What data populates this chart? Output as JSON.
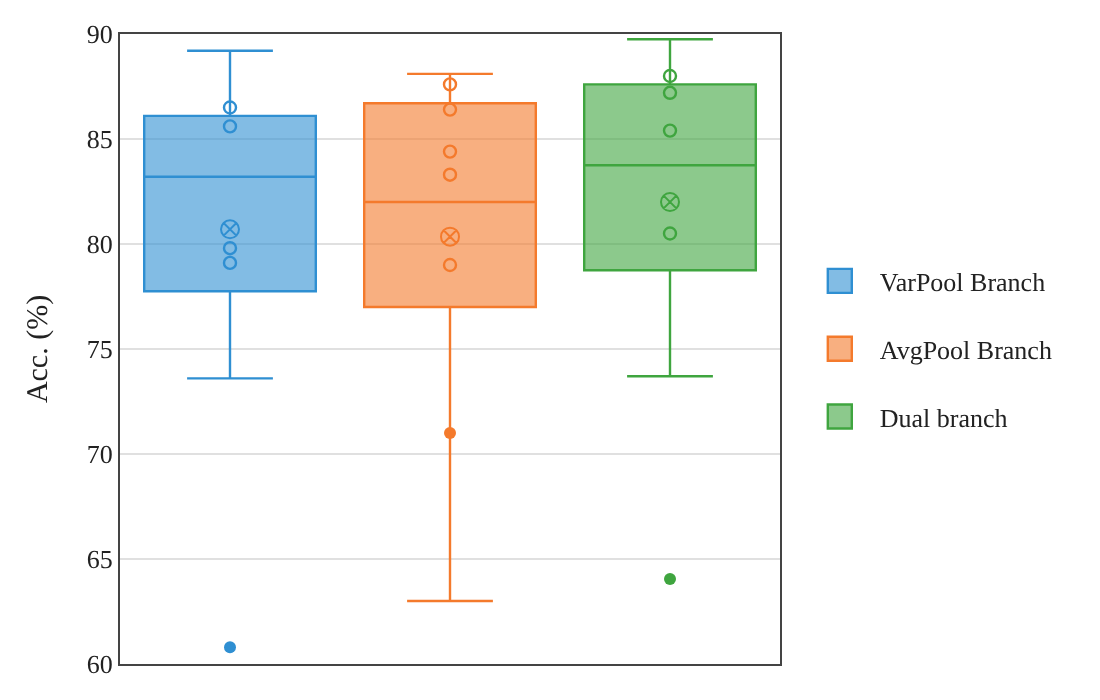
{
  "chart_data": {
    "type": "box",
    "ylabel": "Acc. (%)",
    "categories": [
      null,
      null,
      null
    ],
    "ylim": [
      60,
      90
    ],
    "yticks": [
      60,
      65,
      70,
      75,
      80,
      85,
      90
    ],
    "grid": "y",
    "legend": "right",
    "series": [
      {
        "name": "VarPool Branch",
        "color": "#2f8fd2",
        "boxes": [
          {
            "low": 73.6,
            "q1": 77.75,
            "median": 83.2,
            "q3": 86.1,
            "high": 89.2,
            "mean": 80.7,
            "outliers": [
              60.8
            ]
          },
          null,
          null
        ]
      },
      {
        "name": "AvgPool Branch",
        "color": "#f47a2c",
        "boxes": [
          null,
          {
            "low": 63.0,
            "q1": 77.0,
            "median": 82.0,
            "q3": 86.7,
            "high": 88.1,
            "mean": 80.35,
            "outliers": [
              71.0
            ]
          },
          null
        ]
      },
      {
        "name": "Dual branch",
        "color": "#3fa53f",
        "boxes": [
          null,
          null,
          {
            "low": 73.7,
            "q1": 78.75,
            "median": 83.75,
            "q3": 87.6,
            "high": 89.75,
            "mean": 82.0,
            "outliers": [
              64.05
            ]
          }
        ]
      },
      {
        "type": "scatter",
        "marker": "circle",
        "colors": [
          "#2f8fd2",
          "#f47a2c",
          "#3fa53f"
        ],
        "values": [
          86.5,
          87.6,
          88.0
        ]
      },
      {
        "type": "scatter",
        "marker": "circle",
        "colors": [
          "#2f8fd2",
          "#f47a2c",
          "#3fa53f"
        ],
        "values": [
          85.6,
          86.4,
          87.2
        ]
      },
      {
        "type": "scatter",
        "marker": "circle",
        "colors": [
          "#2f8fd2",
          "#f47a2c",
          "#3fa53f"
        ],
        "values": [
          79.8,
          84.4,
          85.4
        ]
      },
      {
        "type": "scatter",
        "marker": "circle",
        "colors": [
          "#2f8fd2",
          "#f47a2c",
          "#3fa53f"
        ],
        "values": [
          79.1,
          83.3,
          80.5
        ]
      },
      {
        "type": "scatter",
        "marker": "circle",
        "colors": [
          "#2f8fd2",
          "#f47a2c",
          "#3fa53f"
        ],
        "values": [
          null,
          79.0,
          null
        ]
      }
    ]
  }
}
